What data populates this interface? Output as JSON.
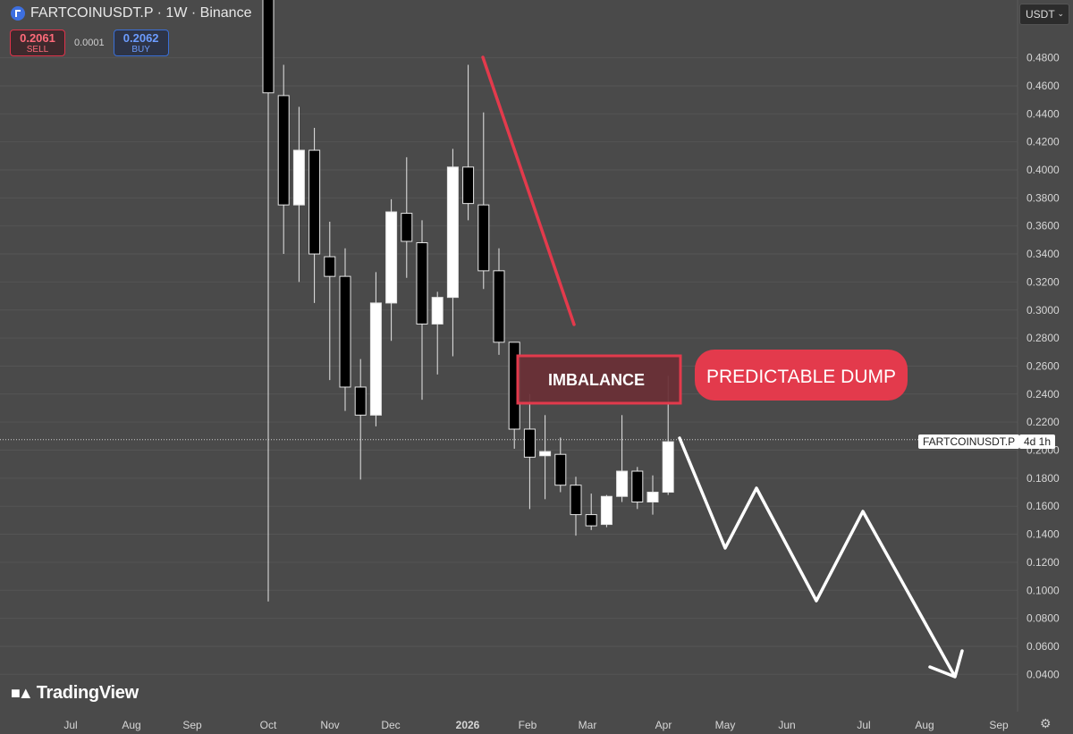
{
  "header": {
    "title": "FARTCOINUSDT.P · 1W · Binance",
    "icon": "fartcoin-logo-icon"
  },
  "trade": {
    "sell_price": "0.2061",
    "sell_label": "SELL",
    "spread": "0.0001",
    "buy_price": "0.2062",
    "buy_label": "BUY"
  },
  "currency_selector": "USDT",
  "symbol_tag": "FARTCOINUSDT.P",
  "countdown": "4d 1h",
  "branding": "TradingView",
  "colors": {
    "background": "#4a4a4a",
    "bull": "#ffffff",
    "bear": "#000000",
    "trend_line": "#e33a4c",
    "imbalance_fill": "#6a2f35",
    "imbalance_border": "#e33a4c",
    "callout_fill": "#e33a4c",
    "projection": "#ffffff"
  },
  "chart_data": {
    "type": "candlestick",
    "interval": "1W",
    "y_axis": {
      "ticks": [
        "0.0400",
        "0.0600",
        "0.0800",
        "0.1000",
        "0.1200",
        "0.1400",
        "0.1600",
        "0.1800",
        "0.2000",
        "0.2200",
        "0.2400",
        "0.2600",
        "0.2800",
        "0.3000",
        "0.3200",
        "0.3400",
        "0.3600",
        "0.3800",
        "0.4000",
        "0.4200",
        "0.4400",
        "0.4600",
        "0.4800"
      ],
      "range": [
        0.025,
        0.515
      ],
      "side": "right"
    },
    "x_axis": {
      "ticks": [
        "Jul",
        "Aug",
        "Sep",
        "Oct",
        "Nov",
        "Dec",
        "2026",
        "Feb",
        "Mar",
        "Apr",
        "May",
        "Jun",
        "Jul",
        "Aug",
        "Sep"
      ],
      "bold_ticks": [
        "2026"
      ]
    },
    "current_price": 0.2075,
    "candles": [
      {
        "o": 0.63,
        "h": 0.9,
        "l": 0.092,
        "c": 0.455
      },
      {
        "o": 0.453,
        "h": 0.475,
        "l": 0.34,
        "c": 0.375
      },
      {
        "o": 0.375,
        "h": 0.445,
        "l": 0.32,
        "c": 0.414
      },
      {
        "o": 0.414,
        "h": 0.43,
        "l": 0.305,
        "c": 0.34
      },
      {
        "o": 0.338,
        "h": 0.363,
        "l": 0.25,
        "c": 0.324
      },
      {
        "o": 0.324,
        "h": 0.344,
        "l": 0.228,
        "c": 0.245
      },
      {
        "o": 0.245,
        "h": 0.265,
        "l": 0.179,
        "c": 0.225
      },
      {
        "o": 0.225,
        "h": 0.327,
        "l": 0.217,
        "c": 0.305
      },
      {
        "o": 0.305,
        "h": 0.379,
        "l": 0.278,
        "c": 0.37
      },
      {
        "o": 0.369,
        "h": 0.409,
        "l": 0.323,
        "c": 0.349
      },
      {
        "o": 0.348,
        "h": 0.364,
        "l": 0.236,
        "c": 0.29
      },
      {
        "o": 0.29,
        "h": 0.313,
        "l": 0.254,
        "c": 0.309
      },
      {
        "o": 0.309,
        "h": 0.415,
        "l": 0.267,
        "c": 0.402
      },
      {
        "o": 0.402,
        "h": 0.475,
        "l": 0.364,
        "c": 0.376
      },
      {
        "o": 0.375,
        "h": 0.441,
        "l": 0.315,
        "c": 0.328
      },
      {
        "o": 0.328,
        "h": 0.344,
        "l": 0.268,
        "c": 0.277
      },
      {
        "o": 0.277,
        "h": 0.276,
        "l": 0.201,
        "c": 0.215
      },
      {
        "o": 0.215,
        "h": 0.24,
        "l": 0.158,
        "c": 0.195
      },
      {
        "o": 0.196,
        "h": 0.225,
        "l": 0.165,
        "c": 0.199
      },
      {
        "o": 0.197,
        "h": 0.209,
        "l": 0.17,
        "c": 0.175
      },
      {
        "o": 0.175,
        "h": 0.181,
        "l": 0.139,
        "c": 0.154
      },
      {
        "o": 0.154,
        "h": 0.169,
        "l": 0.143,
        "c": 0.146
      },
      {
        "o": 0.147,
        "h": 0.168,
        "l": 0.145,
        "c": 0.167
      },
      {
        "o": 0.167,
        "h": 0.225,
        "l": 0.163,
        "c": 0.185
      },
      {
        "o": 0.185,
        "h": 0.188,
        "l": 0.158,
        "c": 0.163
      },
      {
        "o": 0.163,
        "h": 0.182,
        "l": 0.154,
        "c": 0.17
      },
      {
        "o": 0.17,
        "h": 0.253,
        "l": 0.168,
        "c": 0.206
      }
    ],
    "annotations": {
      "imbalance_label": "IMBALANCE",
      "callout_label": "PREDICTABLE DUMP"
    }
  }
}
